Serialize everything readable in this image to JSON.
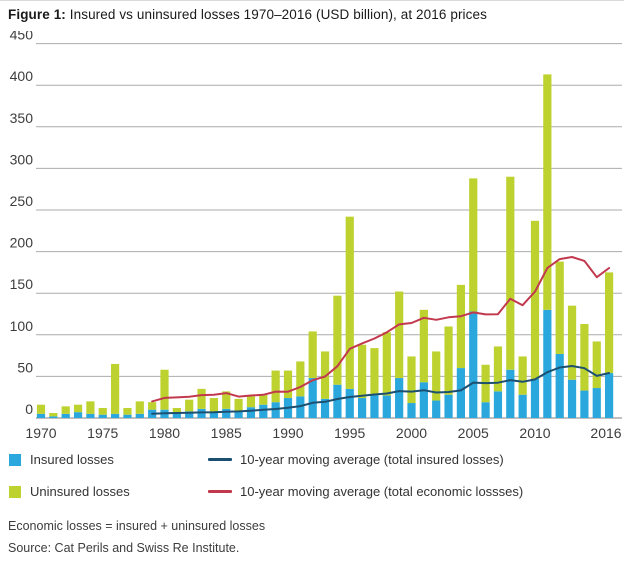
{
  "title": {
    "prefix": "Figure 1:",
    "text": " Insured vs uninsured losses 1970–2016 (USD billion), at 2016 prices"
  },
  "legend": {
    "insured_label": "Insured losses",
    "uninsured_label": "Uninsured losses",
    "ma_insured_label": "10-year moving average (total insured losses)",
    "ma_economic_label": "10-year moving average (total economic lossses)"
  },
  "footer": {
    "note": "Economic losses = insured + uninsured losses",
    "source": "Source: Cat Perils and Swiss Re Institute."
  },
  "colors": {
    "insured_bar": "#2aa7dc",
    "uninsured_bar": "#bed22f",
    "ma_insured_line": "#1c4f70",
    "ma_economic_line": "#c2394e",
    "gridline": "#ababab",
    "axis_line": "#808080",
    "tick_text": "#3d3d3d"
  },
  "chart_data": {
    "type": "stacked-bar-with-lines",
    "title": "Insured vs uninsured losses 1970–2016 (USD billion), at 2016 prices",
    "ylabel": "USD billion (2016 prices)",
    "ylim": [
      0,
      450
    ],
    "y_ticks": [
      0,
      50,
      100,
      150,
      200,
      250,
      300,
      350,
      400,
      450
    ],
    "x_ticks": [
      1970,
      1975,
      1980,
      1985,
      1990,
      1995,
      2000,
      2005,
      2010,
      2016
    ],
    "grid": true,
    "legend_position": "bottom",
    "years": [
      1970,
      1971,
      1972,
      1973,
      1974,
      1975,
      1976,
      1977,
      1978,
      1979,
      1980,
      1981,
      1982,
      1983,
      1984,
      1985,
      1986,
      1987,
      1988,
      1989,
      1990,
      1991,
      1992,
      1993,
      1994,
      1995,
      1996,
      1997,
      1998,
      1999,
      2000,
      2001,
      2002,
      2003,
      2004,
      2005,
      2006,
      2007,
      2008,
      2009,
      2010,
      2011,
      2012,
      2013,
      2014,
      2015,
      2016
    ],
    "series": [
      {
        "name": "Insured losses",
        "type": "bar",
        "values": [
          5,
          2,
          5,
          7,
          5,
          4,
          5,
          4,
          5,
          10,
          10,
          5,
          8,
          11,
          7,
          11,
          8,
          13,
          16,
          19,
          24,
          26,
          48,
          23,
          40,
          35,
          24,
          28,
          27,
          48,
          18,
          43,
          21,
          28,
          60,
          128,
          19,
          32,
          58,
          28,
          47,
          130,
          77,
          46,
          33,
          36,
          54
        ]
      },
      {
        "name": "Uninsured losses",
        "type": "bar",
        "values": [
          11,
          4,
          9,
          9,
          15,
          8,
          60,
          8,
          15,
          9,
          48,
          7,
          14,
          24,
          17,
          21,
          15,
          13,
          12,
          38,
          33,
          42,
          56,
          57,
          107,
          207,
          64,
          56,
          76,
          104,
          56,
          87,
          59,
          82,
          100,
          160,
          45,
          54,
          232,
          46,
          190,
          283,
          111,
          89,
          80,
          56,
          121
        ]
      },
      {
        "name": "10-year moving average (total insured losses)",
        "type": "line",
        "start_year": 1979,
        "values": [
          5.2,
          5.7,
          6.0,
          6.3,
          6.7,
          6.9,
          7.6,
          7.9,
          8.8,
          9.9,
          10.8,
          12.2,
          14.3,
          18.3,
          19.5,
          22.8,
          25.2,
          26.8,
          28.3,
          29.4,
          32.3,
          31.7,
          33.4,
          30.7,
          31.2,
          33.2,
          42.5,
          42.0,
          42.4,
          45.5,
          43.5,
          46.4,
          55.1,
          60.7,
          62.5,
          59.8,
          50.6,
          54.1
        ]
      },
      {
        "name": "10-year moving average (total economic lossses)",
        "type": "line",
        "start_year": 1979,
        "values": [
          20.0,
          24.2,
          24.8,
          25.6,
          27.5,
          27.9,
          29.9,
          25.7,
          27.1,
          27.9,
          31.7,
          31.6,
          37.2,
          45.4,
          49.9,
          62.2,
          83.2,
          89.7,
          95.5,
          103.0,
          112.5,
          114.2,
          120.4,
          118.0,
          121.0,
          122.3,
          126.9,
          124.5,
          124.7,
          143.4,
          135.6,
          151.9,
          180.2,
          191.0,
          193.5,
          188.8,
          169.2,
          180.3
        ]
      }
    ]
  }
}
